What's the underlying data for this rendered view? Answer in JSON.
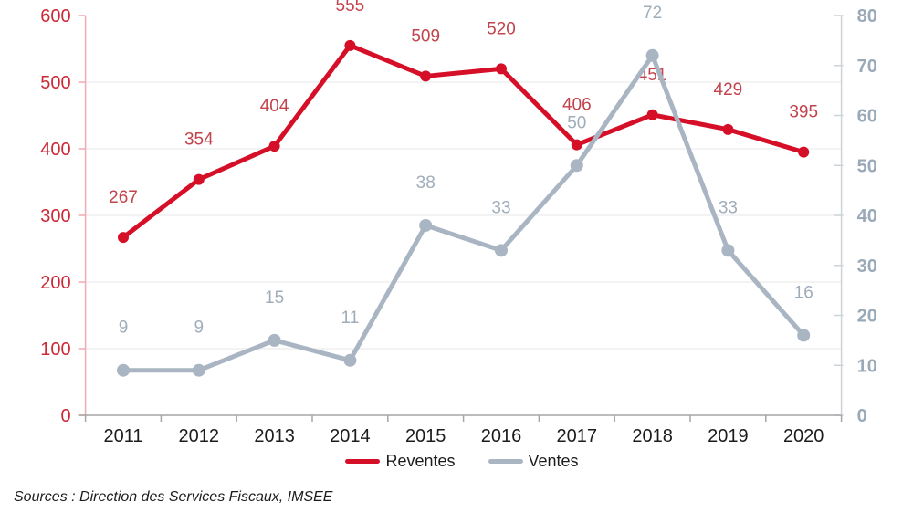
{
  "chart_data": {
    "type": "line",
    "title": "",
    "categories": [
      "2011",
      "2012",
      "2013",
      "2014",
      "2015",
      "2016",
      "2017",
      "2018",
      "2019",
      "2020"
    ],
    "series": [
      {
        "name": "Reventes",
        "axis": "left",
        "values": [
          267,
          354,
          404,
          555,
          509,
          520,
          406,
          451,
          429,
          395
        ],
        "color": "#d60f28",
        "label_color": "#c2434b",
        "marker_radius": 6,
        "line_width": 5
      },
      {
        "name": "Ventes",
        "axis": "right",
        "values": [
          9,
          9,
          15,
          11,
          38,
          33,
          50,
          72,
          33,
          16
        ],
        "color": "#a9b5c2",
        "label_color": "#9fadbb",
        "marker_radius": 7,
        "line_width": 5
      }
    ],
    "left_axis": {
      "min": 0,
      "max": 600,
      "step": 100,
      "tick_labels": [
        "0",
        "100",
        "200",
        "300",
        "400",
        "500",
        "600"
      ],
      "label_color": "#cc2936",
      "line_color": "#f0aab1"
    },
    "right_axis": {
      "min": 0,
      "max": 80,
      "step": 10,
      "tick_labels": [
        "0",
        "10",
        "20",
        "30",
        "40",
        "50",
        "60",
        "70",
        "80"
      ],
      "label_color": "#9aa9b8",
      "line_color": "#ccd3d9"
    },
    "x_axis": {
      "line_color": "#a6a6a6",
      "label_color": "#1c1c1c"
    },
    "grid": {
      "show": true,
      "color": "#e7e7e7"
    },
    "legend": {
      "position": "bottom",
      "items": [
        {
          "label": "Reventes",
          "color": "#d60f28"
        },
        {
          "label": "Ventes",
          "color": "#a9b5c2"
        }
      ]
    }
  },
  "footer": {
    "source_note": "Sources : Direction des Services Fiscaux, IMSEE"
  }
}
